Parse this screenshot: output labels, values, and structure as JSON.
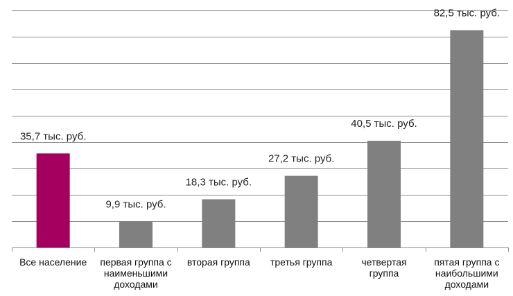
{
  "chart_data": {
    "type": "bar",
    "title": "",
    "xlabel": "",
    "ylabel": "",
    "ylim": [
      0,
      90
    ],
    "grid": true,
    "legend": "none",
    "categories": [
      [
        "Все население"
      ],
      [
        "первая группа с",
        "наименьшими",
        "доходами"
      ],
      [
        "вторая группа"
      ],
      [
        "третья группа"
      ],
      [
        "четвертая",
        "группа"
      ],
      [
        "пятая группа с",
        "наибольшими",
        "доходами"
      ]
    ],
    "values": [
      35.7,
      9.9,
      18.3,
      27.2,
      40.5,
      82.5
    ],
    "data_labels": [
      "35,7 тыс. руб.",
      "9,9 тыс. руб.",
      "18,3 тыс. руб.",
      "27,2 тыс. руб.",
      "40,5 тыс. руб.",
      "82,5 тыс. руб."
    ],
    "colors": [
      "#A50060",
      "#808080",
      "#808080",
      "#808080",
      "#808080",
      "#808080"
    ],
    "grid_color": "#8c8c8c",
    "axis_color": "#8c8c8c"
  }
}
